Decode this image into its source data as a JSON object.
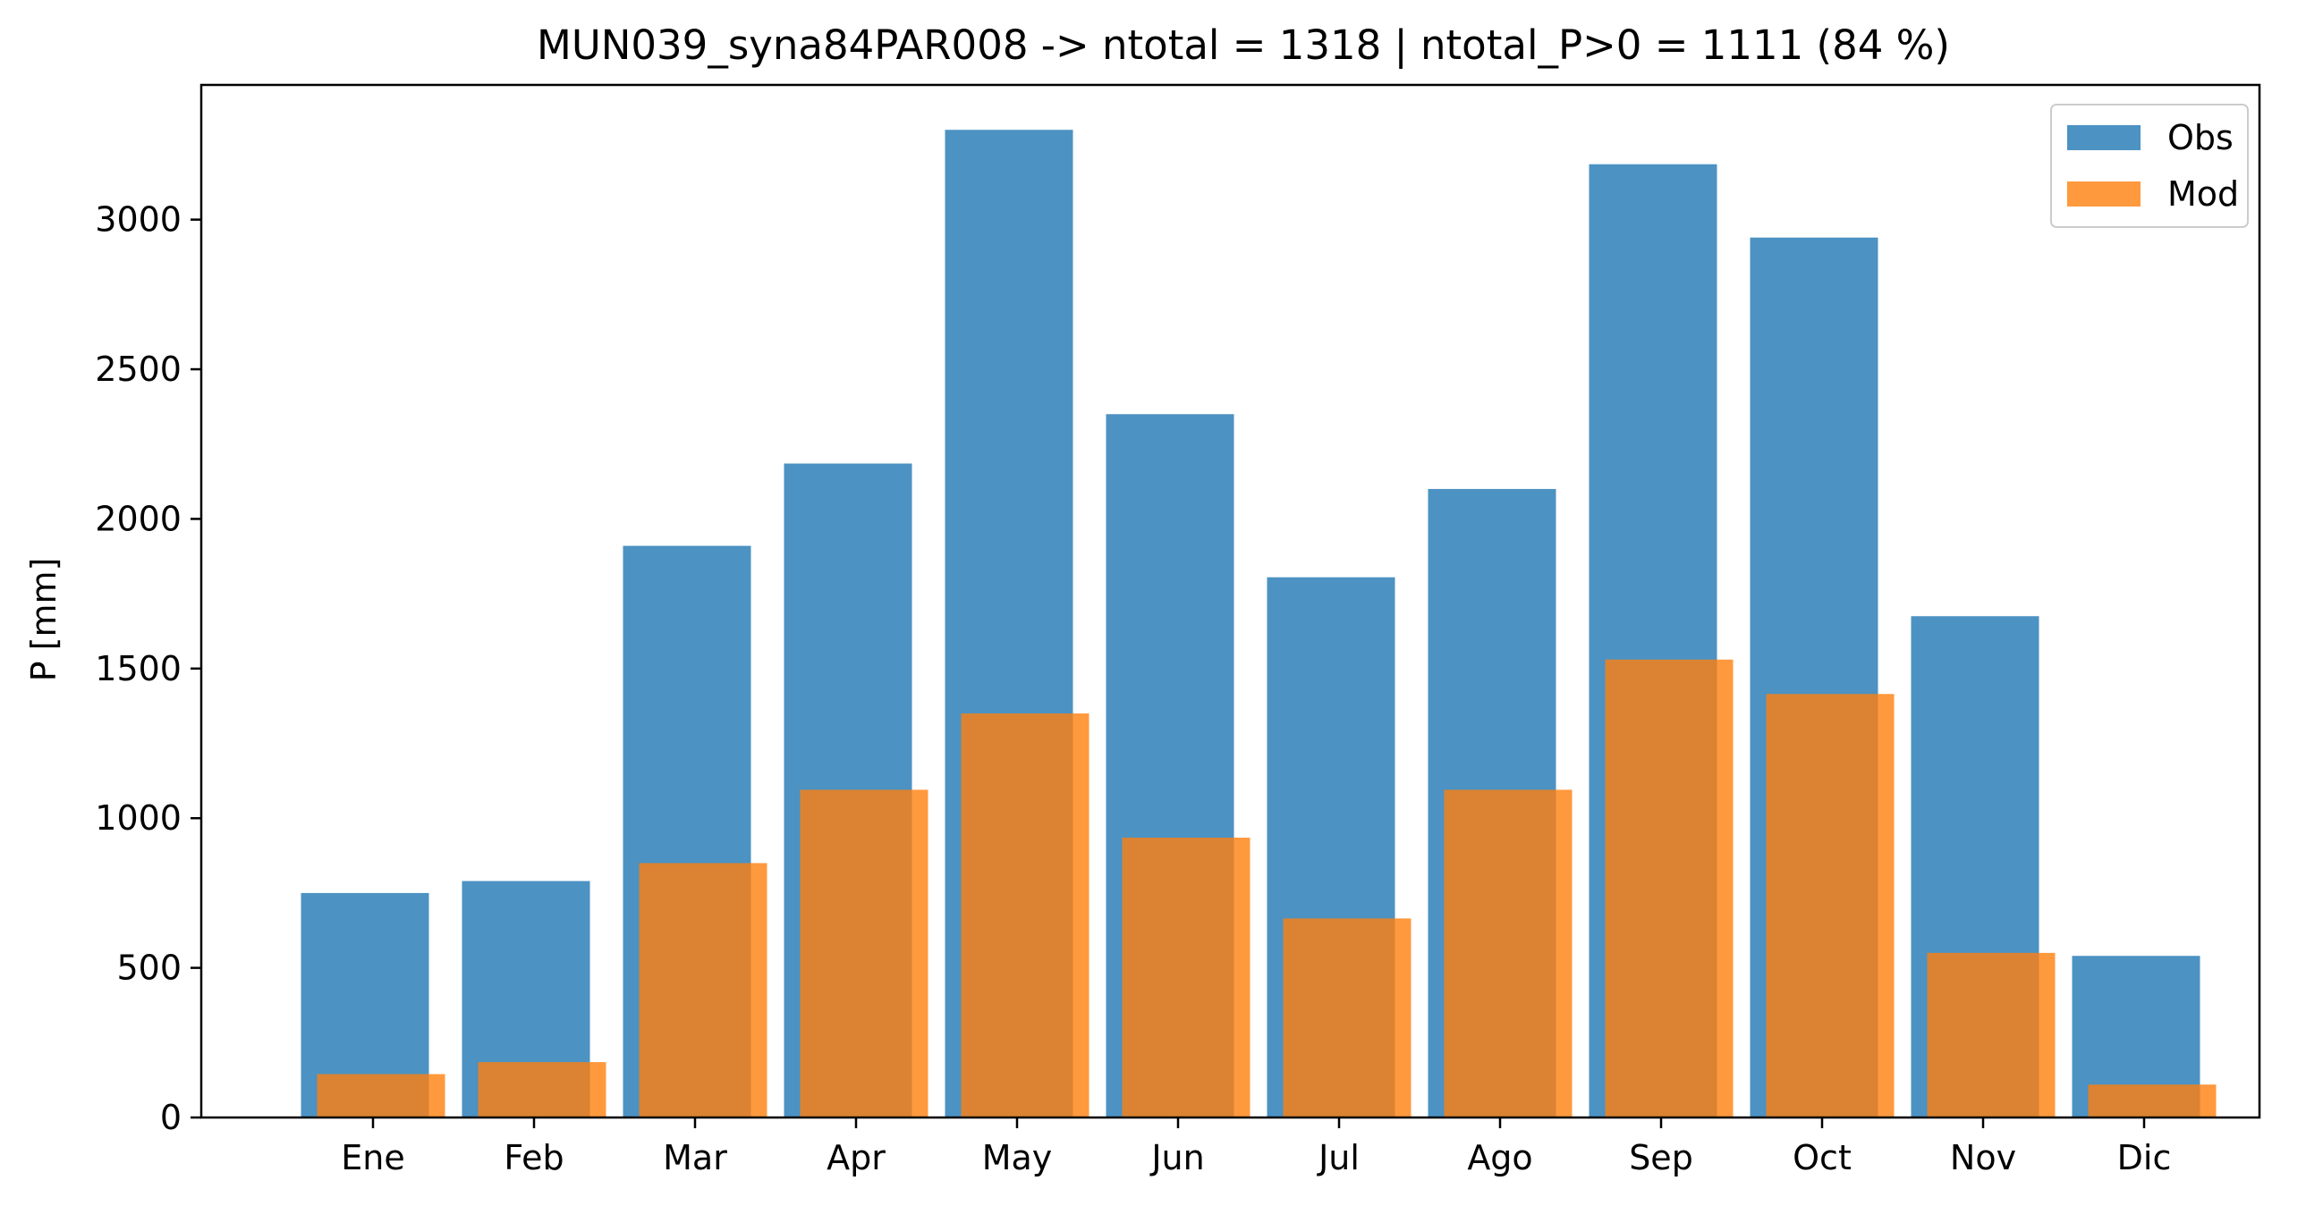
{
  "chart_data": {
    "type": "bar",
    "title": "MUN039_syna84PAR008 -> ntotal = 1318 | ntotal_P>0 = 1111 (84 %)",
    "xlabel": "",
    "ylabel": "P [mm]",
    "ylim": [
      0,
      3450
    ],
    "yticks": [
      0,
      500,
      1000,
      1500,
      2000,
      2500,
      3000
    ],
    "categories": [
      "Ene",
      "Feb",
      "Mar",
      "Apr",
      "May",
      "Jun",
      "Jul",
      "Ago",
      "Sep",
      "Oct",
      "Nov",
      "Dic"
    ],
    "series": [
      {
        "name": "Obs",
        "color": "#1f77b4",
        "values": [
          750,
          790,
          1910,
          2185,
          3300,
          2350,
          1805,
          2100,
          3185,
          2940,
          1675,
          540
        ]
      },
      {
        "name": "Mod",
        "color": "#ff7f0e",
        "values": [
          145,
          185,
          850,
          1095,
          1350,
          935,
          665,
          1095,
          1530,
          1415,
          550,
          110
        ]
      }
    ],
    "grid": false,
    "legend_position": "top-right"
  }
}
